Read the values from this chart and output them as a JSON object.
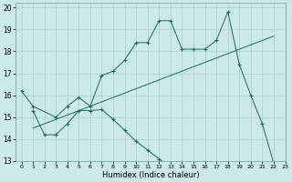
{
  "line1_x": [
    0,
    1,
    3,
    4,
    5,
    6,
    7,
    8,
    9,
    10,
    11,
    12,
    13,
    14,
    15,
    16,
    17,
    18,
    19,
    20,
    21,
    22
  ],
  "line1_y": [
    16.2,
    15.5,
    15.0,
    15.5,
    15.9,
    15.5,
    16.9,
    17.1,
    17.6,
    18.4,
    18.4,
    19.4,
    19.4,
    18.1,
    18.1,
    18.1,
    18.5,
    19.8,
    17.4,
    16.0,
    14.7,
    12.9
  ],
  "line2_x": [
    1,
    22
  ],
  "line2_y": [
    14.5,
    18.7
  ],
  "line3_x": [
    1,
    2,
    3,
    4,
    5,
    6,
    7,
    8,
    9,
    10,
    11,
    12,
    13
  ],
  "line3_y": [
    15.3,
    14.2,
    14.2,
    14.7,
    15.3,
    15.3,
    15.35,
    14.9,
    14.4,
    13.9,
    13.5,
    13.1,
    12.7
  ],
  "bg_color": "#cce8e8",
  "grid_color": "#aacccc",
  "line_color": "#1a6b5e",
  "xlim": [
    -0.5,
    23
  ],
  "ylim": [
    13,
    20.2
  ],
  "yticks": [
    13,
    14,
    15,
    16,
    17,
    18,
    19,
    20
  ],
  "xticks": [
    0,
    1,
    2,
    3,
    4,
    5,
    6,
    7,
    8,
    9,
    10,
    11,
    12,
    13,
    14,
    15,
    16,
    17,
    18,
    19,
    20,
    21,
    22,
    23
  ],
  "xlabel": "Humidex (Indice chaleur)",
  "marker": "+",
  "markersize": 3.5,
  "linewidth": 0.7
}
